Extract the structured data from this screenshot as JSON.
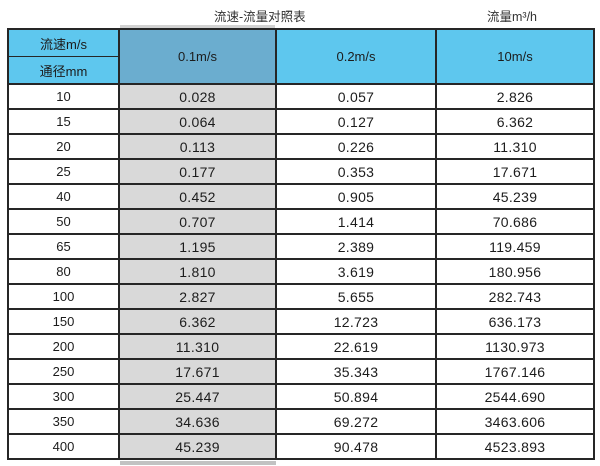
{
  "header": {
    "title": "流速-流量对照表",
    "unit_label": "流量m³/h"
  },
  "table": {
    "corner_top": "流速m/s",
    "corner_bottom": "通径mm",
    "columns": [
      "0.1m/s",
      "0.2m/s",
      "10m/s"
    ],
    "rows": [
      {
        "diameter": "10",
        "values": [
          "0.028",
          "0.057",
          "2.826"
        ]
      },
      {
        "diameter": "15",
        "values": [
          "0.064",
          "0.127",
          "6.362"
        ]
      },
      {
        "diameter": "20",
        "values": [
          "0.113",
          "0.226",
          "11.310"
        ]
      },
      {
        "diameter": "25",
        "values": [
          "0.177",
          "0.353",
          "17.671"
        ]
      },
      {
        "diameter": "40",
        "values": [
          "0.452",
          "0.905",
          "45.239"
        ]
      },
      {
        "diameter": "50",
        "values": [
          "0.707",
          "1.414",
          "70.686"
        ]
      },
      {
        "diameter": "65",
        "values": [
          "1.195",
          "2.389",
          "119.459"
        ]
      },
      {
        "diameter": "80",
        "values": [
          "1.810",
          "3.619",
          "180.956"
        ]
      },
      {
        "diameter": "100",
        "values": [
          "2.827",
          "5.655",
          "282.743"
        ]
      },
      {
        "diameter": "150",
        "values": [
          "6.362",
          "12.723",
          "636.173"
        ]
      },
      {
        "diameter": "200",
        "values": [
          "11.310",
          "22.619",
          "1130.973"
        ]
      },
      {
        "diameter": "250",
        "values": [
          "17.671",
          "35.343",
          "1767.146"
        ]
      },
      {
        "diameter": "300",
        "values": [
          "25.447",
          "50.894",
          "2544.690"
        ]
      },
      {
        "diameter": "350",
        "values": [
          "34.636",
          "69.272",
          "3463.606"
        ]
      },
      {
        "diameter": "400",
        "values": [
          "45.239",
          "90.478",
          "4523.893"
        ]
      }
    ]
  },
  "colors": {
    "header_blue": "#5ec7ee",
    "highlight_header_blue": "#6badcf",
    "highlight_column_gray": "#d9d9d9",
    "border": "#262626",
    "text": "#1c1c1c"
  },
  "chart_data": {
    "type": "table",
    "title": "流速-流量对照表",
    "unit_label": "流量m³/h",
    "row_axis_label": "通径mm",
    "col_axis_label": "流速m/s",
    "categories": [
      10,
      15,
      20,
      25,
      40,
      50,
      65,
      80,
      100,
      150,
      200,
      250,
      300,
      350,
      400
    ],
    "series": [
      {
        "name": "0.1m/s",
        "values": [
          0.028,
          0.064,
          0.113,
          0.177,
          0.452,
          0.707,
          1.195,
          1.81,
          2.827,
          6.362,
          11.31,
          17.671,
          25.447,
          34.636,
          45.239
        ]
      },
      {
        "name": "0.2m/s",
        "values": [
          0.057,
          0.127,
          0.226,
          0.353,
          0.905,
          1.414,
          2.389,
          3.619,
          5.655,
          12.723,
          22.619,
          35.343,
          50.894,
          69.272,
          90.478
        ]
      },
      {
        "name": "10m/s",
        "values": [
          2.826,
          6.362,
          11.31,
          17.671,
          45.239,
          70.686,
          119.459,
          180.956,
          282.743,
          636.173,
          1130.973,
          1767.146,
          2544.69,
          3463.606,
          4523.893
        ]
      }
    ]
  }
}
